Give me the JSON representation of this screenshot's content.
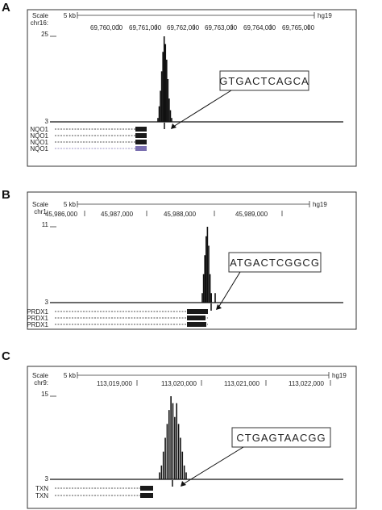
{
  "chart_data": [
    {
      "type": "bar",
      "panel": "A",
      "scale_label": "Scale",
      "scale_value": "5 kb",
      "chrom_label": "chr16:",
      "assembly": "hg19",
      "ticks": [
        "69,760,000",
        "69,761,000",
        "69,762,000",
        "69,763,000",
        "69,764,000",
        "69,765,000"
      ],
      "ymax_label": "25",
      "ymin_label": "3",
      "ylim": [
        3,
        25
      ],
      "motif": "GTGACTCAGCA",
      "genes": [
        "NQO1",
        "NQO1",
        "NQO1",
        "NQO1"
      ],
      "highlight_color": "#7a6fb0",
      "peak": [
        {
          "x": 0.0,
          "y": 4
        },
        {
          "x": 0.5,
          "y": 7
        },
        {
          "x": 1.0,
          "y": 11
        },
        {
          "x": 1.5,
          "y": 16
        },
        {
          "x": 2.0,
          "y": 21
        },
        {
          "x": 2.5,
          "y": 25
        },
        {
          "x": 3.0,
          "y": 23
        },
        {
          "x": 3.5,
          "y": 19
        },
        {
          "x": 4.0,
          "y": 14
        },
        {
          "x": 4.5,
          "y": 9
        },
        {
          "x": 5.0,
          "y": 6
        },
        {
          "x": 5.5,
          "y": 4
        }
      ]
    },
    {
      "type": "bar",
      "panel": "B",
      "scale_label": "Scale",
      "scale_value": "5 kb",
      "chrom_label": "chr1:",
      "assembly": "hg19",
      "ticks": [
        "45,986,000",
        "45,987,000",
        "45,988,000",
        "45,989,000"
      ],
      "ymax_label": "11",
      "ymin_label": "3",
      "ylim": [
        3,
        11
      ],
      "motif": "ATGACTCGGCG",
      "genes": [
        "PRDX1",
        "PRDX1",
        "PRDX1"
      ],
      "peak": [
        {
          "x": 0.0,
          "y": 4
        },
        {
          "x": 0.5,
          "y": 6
        },
        {
          "x": 1.0,
          "y": 8
        },
        {
          "x": 1.5,
          "y": 10
        },
        {
          "x": 2.0,
          "y": 11
        },
        {
          "x": 2.5,
          "y": 9
        },
        {
          "x": 3.0,
          "y": 6
        },
        {
          "x": 3.5,
          "y": 4
        },
        {
          "x": 5.0,
          "y": 4
        }
      ]
    },
    {
      "type": "bar",
      "panel": "C",
      "scale_label": "Scale",
      "scale_value": "5 kb",
      "chrom_label": "chr9:",
      "assembly": "hg19",
      "ticks": [
        "113,019,000",
        "113,020,000",
        "113,021,000",
        "113,022,000"
      ],
      "ymax_label": "15",
      "ymin_label": "3",
      "ylim": [
        3,
        15
      ],
      "motif": "CTGAGTAACGG",
      "genes": [
        "TXN",
        "TXN"
      ],
      "peak": [
        {
          "x": 0.0,
          "y": 4
        },
        {
          "x": 0.5,
          "y": 5
        },
        {
          "x": 1.0,
          "y": 7
        },
        {
          "x": 1.5,
          "y": 9
        },
        {
          "x": 2.0,
          "y": 11
        },
        {
          "x": 2.5,
          "y": 13
        },
        {
          "x": 3.0,
          "y": 15
        },
        {
          "x": 3.5,
          "y": 14
        },
        {
          "x": 4.0,
          "y": 12
        },
        {
          "x": 4.5,
          "y": 14
        },
        {
          "x": 5.0,
          "y": 11
        },
        {
          "x": 5.5,
          "y": 9
        },
        {
          "x": 6.0,
          "y": 7
        },
        {
          "x": 6.5,
          "y": 5
        },
        {
          "x": 7.0,
          "y": 4
        }
      ]
    }
  ]
}
